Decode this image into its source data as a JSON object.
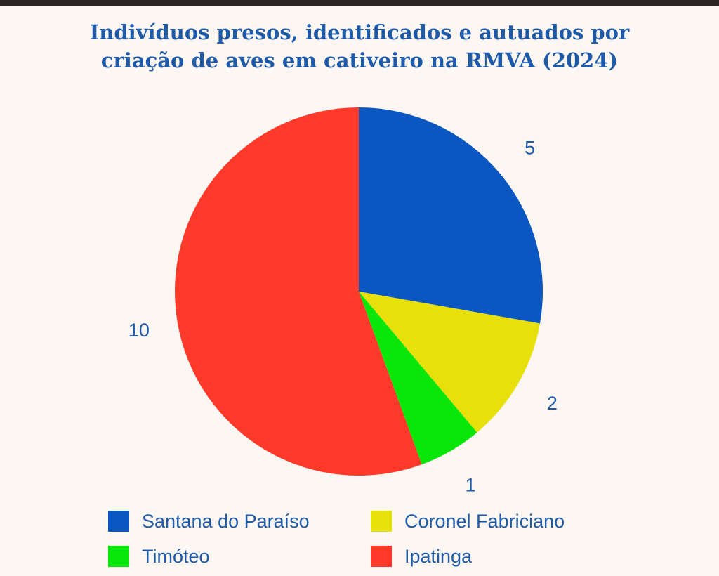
{
  "chart_data": {
    "type": "pie",
    "title_lines": [
      "Indivíduos presos, identificados e autuados por",
      "criação de aves em cativeiro na RMVA (2024)"
    ],
    "series": [
      {
        "name": "",
        "slices": [
          {
            "label": "Santana do Paraíso",
            "value": 5,
            "value_label": "5",
            "color": "#0A57C2"
          },
          {
            "label": "Coronel Fabriciano",
            "value": 2,
            "value_label": "2",
            "color": "#E8E00A"
          },
          {
            "label": "Timóteo",
            "value": 1,
            "value_label": "1",
            "color": "#0AE60A"
          },
          {
            "label": "Ipatinga",
            "value": 10,
            "value_label": "10",
            "color": "#FF3A2A"
          }
        ]
      }
    ],
    "legend_position": "bottom",
    "start_angle": "top",
    "direction": "clockwise"
  }
}
